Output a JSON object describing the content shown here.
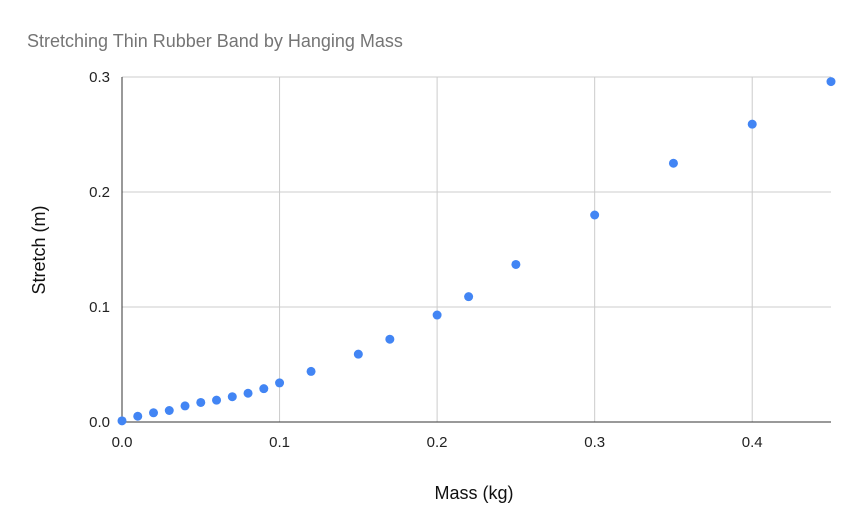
{
  "chart_data": {
    "type": "scatter",
    "title": "Stretching Thin Rubber Band by Hanging Mass",
    "xlabel": "Mass (kg)",
    "ylabel": "Stretch (m)",
    "xlim": [
      0,
      0.45
    ],
    "ylim": [
      0,
      0.3
    ],
    "x_ticks": [
      0.0,
      0.1,
      0.2,
      0.3,
      0.4
    ],
    "x_tick_labels": [
      "0.0",
      "0.1",
      "0.2",
      "0.3",
      "0.4"
    ],
    "y_ticks": [
      0.0,
      0.1,
      0.2,
      0.3
    ],
    "y_tick_labels": [
      "0.0",
      "0.1",
      "0.2",
      "0.3"
    ],
    "grid": true,
    "legend": "none",
    "series": [
      {
        "color": "#4285f4",
        "points": [
          {
            "x": 0.0,
            "y": 0.001
          },
          {
            "x": 0.01,
            "y": 0.005
          },
          {
            "x": 0.02,
            "y": 0.008
          },
          {
            "x": 0.03,
            "y": 0.01
          },
          {
            "x": 0.04,
            "y": 0.014
          },
          {
            "x": 0.05,
            "y": 0.017
          },
          {
            "x": 0.06,
            "y": 0.019
          },
          {
            "x": 0.07,
            "y": 0.022
          },
          {
            "x": 0.08,
            "y": 0.025
          },
          {
            "x": 0.09,
            "y": 0.029
          },
          {
            "x": 0.1,
            "y": 0.034
          },
          {
            "x": 0.12,
            "y": 0.044
          },
          {
            "x": 0.15,
            "y": 0.059
          },
          {
            "x": 0.17,
            "y": 0.072
          },
          {
            "x": 0.2,
            "y": 0.093
          },
          {
            "x": 0.22,
            "y": 0.109
          },
          {
            "x": 0.25,
            "y": 0.137
          },
          {
            "x": 0.3,
            "y": 0.18
          },
          {
            "x": 0.35,
            "y": 0.225
          },
          {
            "x": 0.4,
            "y": 0.259
          },
          {
            "x": 0.45,
            "y": 0.296
          }
        ]
      }
    ]
  }
}
